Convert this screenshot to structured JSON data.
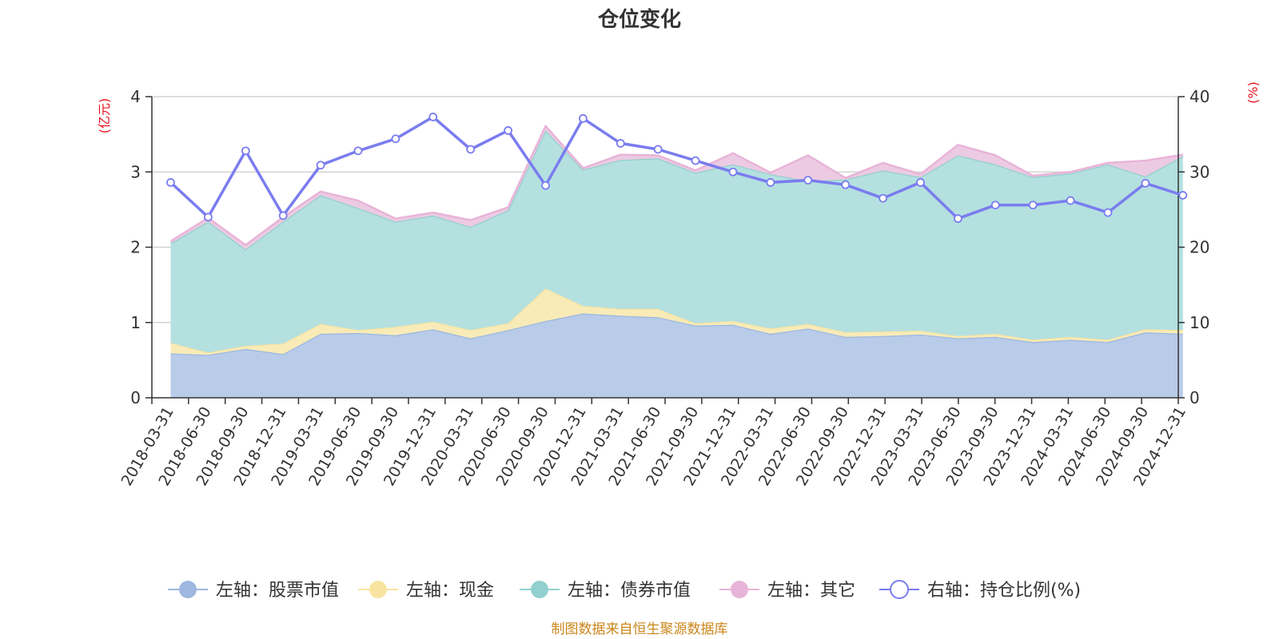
{
  "chart_data": {
    "type": "area",
    "title": "仓位变化",
    "left_axis_unit": "(亿元)",
    "right_axis_unit": "(%)",
    "left_ylim": [
      0,
      4
    ],
    "right_ylim": [
      0,
      40
    ],
    "left_ticks": [
      "0",
      "1",
      "2",
      "3",
      "4"
    ],
    "right_ticks": [
      "0",
      "10",
      "20",
      "30",
      "40"
    ],
    "categories": [
      "2018-03-31",
      "2018-06-30",
      "2018-09-30",
      "2018-12-31",
      "2019-03-31",
      "2019-06-30",
      "2019-09-30",
      "2019-12-31",
      "2020-03-31",
      "2020-06-30",
      "2020-09-30",
      "2020-12-31",
      "2021-03-31",
      "2021-06-30",
      "2021-09-30",
      "2021-12-31",
      "2022-03-31",
      "2022-06-30",
      "2022-09-30",
      "2022-12-31",
      "2023-03-31",
      "2023-06-30",
      "2023-09-30",
      "2023-12-31",
      "2024-03-31",
      "2024-06-30",
      "2024-09-30",
      "2024-12-31"
    ],
    "stack_series": [
      {
        "name": "左轴：股票市值",
        "color": "#9db7e0",
        "fill": "#b8cbe9",
        "values": [
          0.59,
          0.57,
          0.65,
          0.58,
          0.85,
          0.86,
          0.83,
          0.91,
          0.79,
          0.9,
          1.02,
          1.12,
          1.09,
          1.07,
          0.96,
          0.97,
          0.85,
          0.92,
          0.81,
          0.82,
          0.84,
          0.79,
          0.81,
          0.74,
          0.77,
          0.74,
          0.87,
          0.85
        ]
      },
      {
        "name": "左轴：现金",
        "color": "#f8e4a0",
        "fill": "#f8ebb8",
        "values": [
          0.14,
          0.03,
          0.04,
          0.14,
          0.13,
          0.04,
          0.11,
          0.1,
          0.11,
          0.09,
          0.43,
          0.1,
          0.09,
          0.11,
          0.03,
          0.05,
          0.07,
          0.06,
          0.06,
          0.06,
          0.05,
          0.03,
          0.04,
          0.03,
          0.04,
          0.03,
          0.04,
          0.05
        ]
      },
      {
        "name": "左轴：债券市值",
        "color": "#92d0cf",
        "fill": "#b4e0e0",
        "values": [
          1.32,
          1.74,
          1.28,
          1.62,
          1.71,
          1.62,
          1.4,
          1.41,
          1.37,
          1.5,
          2.1,
          1.81,
          1.98,
          2.0,
          2.0,
          2.08,
          2.05,
          1.9,
          2.03,
          2.14,
          2.04,
          2.4,
          2.25,
          2.16,
          2.17,
          2.33,
          2.03,
          2.31
        ]
      },
      {
        "name": "左轴：其它",
        "color": "#e8b4d8",
        "fill": "#eccbe2",
        "values": [
          0.03,
          0.05,
          0.06,
          0.06,
          0.05,
          0.1,
          0.04,
          0.04,
          0.09,
          0.04,
          0.06,
          0.02,
          0.07,
          0.04,
          0.03,
          0.15,
          0.02,
          0.34,
          0.02,
          0.1,
          0.04,
          0.14,
          0.12,
          0.02,
          0.02,
          0.02,
          0.21,
          0.02
        ]
      }
    ],
    "line_series": {
      "name": "右轴：持仓比例(%)",
      "color": "#7a7cef",
      "values": [
        28.6,
        24.0,
        32.8,
        24.2,
        30.9,
        32.8,
        34.4,
        37.3,
        33.0,
        35.5,
        28.2,
        37.1,
        33.8,
        33.0,
        31.5,
        30.0,
        28.6,
        28.9,
        28.3,
        26.5,
        28.6,
        23.8,
        25.6,
        25.6,
        26.2,
        24.6,
        28.5,
        26.9
      ]
    },
    "legend_position": "bottom",
    "grid": true
  },
  "source_text": "制图数据来自恒生聚源数据库"
}
